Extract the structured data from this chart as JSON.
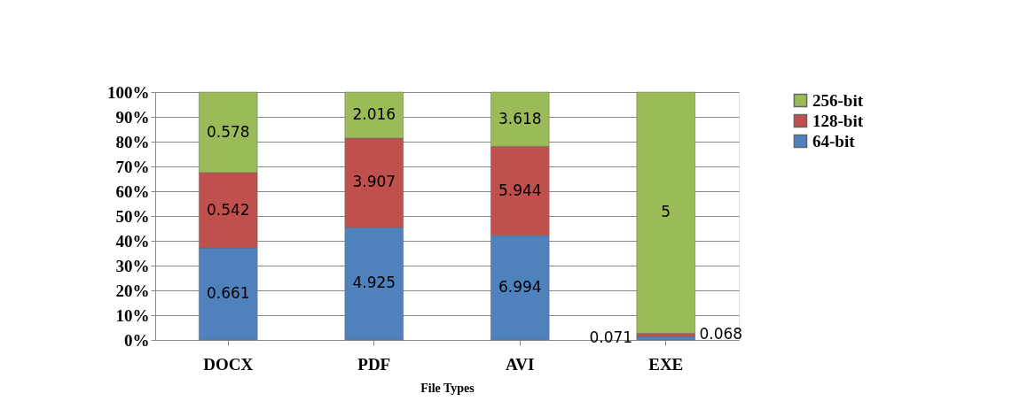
{
  "chart_data": {
    "type": "bar",
    "stacked": true,
    "xlabel": "File Types",
    "categories": [
      "DOCX",
      "PDF",
      "AVI",
      "EXE"
    ],
    "series": [
      {
        "name": "64-bit",
        "color": "#4f81bd",
        "values": [
          37.1,
          45.4,
          42.2,
          1.4
        ]
      },
      {
        "name": "128-bit",
        "color": "#c0504d",
        "values": [
          30.4,
          36.0,
          35.9,
          1.3
        ]
      },
      {
        "name": "256-bit",
        "color": "#9bbb59",
        "values": [
          32.5,
          18.6,
          21.9,
          97.3
        ]
      }
    ],
    "annotations": [
      "0.661",
      "4.925",
      "6.994",
      "0.071",
      "0.542",
      "3.907",
      "5.944",
      "0.068",
      "0.578",
      "2.016",
      "3.618",
      "5"
    ],
    "ylim": [
      0,
      100
    ],
    "yticks": [
      {
        "value": 0,
        "label": "0%"
      },
      {
        "value": 10,
        "label": "10%"
      },
      {
        "value": 20,
        "label": "20%"
      },
      {
        "value": 30,
        "label": "30%"
      },
      {
        "value": 40,
        "label": "40%"
      },
      {
        "value": 50,
        "label": "50%"
      },
      {
        "value": 60,
        "label": "60%"
      },
      {
        "value": 70,
        "label": "70%"
      },
      {
        "value": 80,
        "label": "80%"
      },
      {
        "value": 90,
        "label": "90%"
      },
      {
        "value": 100,
        "label": "100%"
      }
    ],
    "grid": "y",
    "legend": "right"
  }
}
